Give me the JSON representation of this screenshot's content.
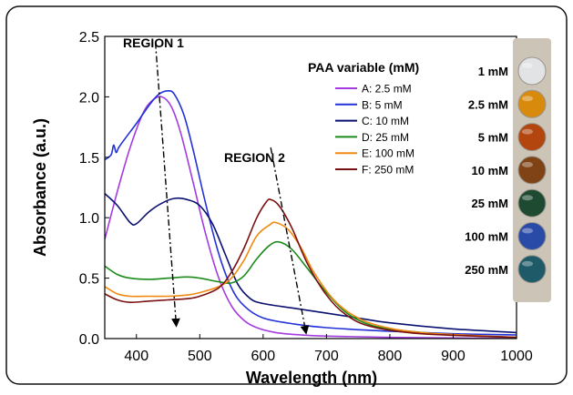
{
  "chart_data": {
    "type": "line",
    "xlabel": "Wavelength (nm)",
    "ylabel": "Absorbance (a.u.)",
    "xlim": [
      350,
      1000
    ],
    "ylim": [
      0.0,
      2.5
    ],
    "xticks": [
      "400",
      "500",
      "600",
      "700",
      "800",
      "900",
      "1000"
    ],
    "xtick_values": [
      400,
      500,
      600,
      700,
      800,
      900,
      1000
    ],
    "yticks": [
      "0.0",
      "0.5",
      "1.0",
      "1.5",
      "2.0",
      "2.5"
    ],
    "ytick_values": [
      0.0,
      0.5,
      1.0,
      1.5,
      2.0,
      2.5
    ],
    "grid": false,
    "legend_title": "PAA variable (mM)",
    "legend_placement": "top-right",
    "annotations": {
      "region1": "REGION 1",
      "region2": "REGION 2"
    },
    "arrows": [
      {
        "from": [
          430,
          2.45
        ],
        "to": [
          463,
          0.1
        ]
      },
      {
        "from": [
          612,
          1.58
        ],
        "to": [
          668,
          0.04
        ]
      }
    ],
    "series": [
      {
        "name": "A: 2.5 mM",
        "color": "#a33be0",
        "points": [
          [
            350,
            0.82
          ],
          [
            370,
            1.22
          ],
          [
            390,
            1.58
          ],
          [
            410,
            1.86
          ],
          [
            425,
            1.97
          ],
          [
            440,
            2.0
          ],
          [
            455,
            1.92
          ],
          [
            470,
            1.7
          ],
          [
            490,
            1.28
          ],
          [
            510,
            0.85
          ],
          [
            530,
            0.5
          ],
          [
            550,
            0.27
          ],
          [
            570,
            0.15
          ],
          [
            590,
            0.09
          ],
          [
            620,
            0.05
          ],
          [
            660,
            0.03
          ],
          [
            700,
            0.02
          ],
          [
            800,
            0.01
          ],
          [
            1000,
            0.0
          ]
        ]
      },
      {
        "name": "B: 5 mM",
        "color": "#2230d8",
        "points": [
          [
            350,
            1.48
          ],
          [
            360,
            1.52
          ],
          [
            364,
            1.6
          ],
          [
            368,
            1.54
          ],
          [
            372,
            1.58
          ],
          [
            380,
            1.64
          ],
          [
            400,
            1.78
          ],
          [
            420,
            1.93
          ],
          [
            435,
            2.02
          ],
          [
            450,
            2.05
          ],
          [
            460,
            2.02
          ],
          [
            475,
            1.85
          ],
          [
            490,
            1.55
          ],
          [
            510,
            1.1
          ],
          [
            530,
            0.7
          ],
          [
            550,
            0.42
          ],
          [
            570,
            0.27
          ],
          [
            600,
            0.17
          ],
          [
            650,
            0.12
          ],
          [
            700,
            0.09
          ],
          [
            800,
            0.06
          ],
          [
            900,
            0.04
          ],
          [
            1000,
            0.03
          ]
        ]
      },
      {
        "name": "C: 10 mM",
        "color": "#0a1070",
        "points": [
          [
            350,
            1.2
          ],
          [
            370,
            1.1
          ],
          [
            390,
            0.96
          ],
          [
            400,
            0.95
          ],
          [
            420,
            1.05
          ],
          [
            440,
            1.12
          ],
          [
            460,
            1.16
          ],
          [
            480,
            1.15
          ],
          [
            500,
            1.1
          ],
          [
            520,
            0.95
          ],
          [
            540,
            0.7
          ],
          [
            560,
            0.45
          ],
          [
            580,
            0.33
          ],
          [
            600,
            0.29
          ],
          [
            650,
            0.25
          ],
          [
            700,
            0.21
          ],
          [
            750,
            0.17
          ],
          [
            800,
            0.13
          ],
          [
            900,
            0.08
          ],
          [
            1000,
            0.05
          ]
        ]
      },
      {
        "name": "D: 25 mM",
        "color": "#1a8a1a",
        "points": [
          [
            350,
            0.6
          ],
          [
            370,
            0.53
          ],
          [
            390,
            0.5
          ],
          [
            420,
            0.49
          ],
          [
            450,
            0.5
          ],
          [
            480,
            0.51
          ],
          [
            500,
            0.5
          ],
          [
            530,
            0.47
          ],
          [
            550,
            0.46
          ],
          [
            570,
            0.52
          ],
          [
            590,
            0.66
          ],
          [
            610,
            0.77
          ],
          [
            625,
            0.8
          ],
          [
            645,
            0.74
          ],
          [
            670,
            0.58
          ],
          [
            700,
            0.38
          ],
          [
            730,
            0.22
          ],
          [
            760,
            0.13
          ],
          [
            800,
            0.08
          ],
          [
            900,
            0.03
          ],
          [
            1000,
            0.01
          ]
        ]
      },
      {
        "name": "E: 100 mM",
        "color": "#f08a10",
        "points": [
          [
            350,
            0.43
          ],
          [
            370,
            0.37
          ],
          [
            390,
            0.35
          ],
          [
            420,
            0.35
          ],
          [
            450,
            0.35
          ],
          [
            480,
            0.36
          ],
          [
            500,
            0.38
          ],
          [
            530,
            0.43
          ],
          [
            550,
            0.5
          ],
          [
            570,
            0.65
          ],
          [
            590,
            0.85
          ],
          [
            610,
            0.94
          ],
          [
            620,
            0.96
          ],
          [
            640,
            0.9
          ],
          [
            660,
            0.75
          ],
          [
            680,
            0.55
          ],
          [
            710,
            0.33
          ],
          [
            740,
            0.2
          ],
          [
            780,
            0.11
          ],
          [
            850,
            0.05
          ],
          [
            1000,
            0.01
          ]
        ]
      },
      {
        "name": "F: 250 mM",
        "color": "#7a1010",
        "points": [
          [
            350,
            0.37
          ],
          [
            370,
            0.32
          ],
          [
            390,
            0.3
          ],
          [
            420,
            0.31
          ],
          [
            450,
            0.32
          ],
          [
            480,
            0.33
          ],
          [
            500,
            0.35
          ],
          [
            530,
            0.42
          ],
          [
            550,
            0.55
          ],
          [
            570,
            0.75
          ],
          [
            590,
            1.0
          ],
          [
            605,
            1.13
          ],
          [
            612,
            1.15
          ],
          [
            625,
            1.1
          ],
          [
            645,
            0.92
          ],
          [
            670,
            0.62
          ],
          [
            700,
            0.36
          ],
          [
            730,
            0.2
          ],
          [
            770,
            0.1
          ],
          [
            850,
            0.04
          ],
          [
            1000,
            0.01
          ]
        ]
      }
    ]
  },
  "inset": {
    "labels": [
      "1 mM",
      "2.5 mM",
      "5 mM",
      "10 mM",
      "25 mM",
      "100 mM",
      "250 mM"
    ],
    "well_colors": [
      "#e2e3e4",
      "#d88a0c",
      "#b2460e",
      "#7f4316",
      "#1f4a32",
      "#2a4aa8",
      "#1e5a68"
    ],
    "panel_color": "#cdc4b8"
  }
}
